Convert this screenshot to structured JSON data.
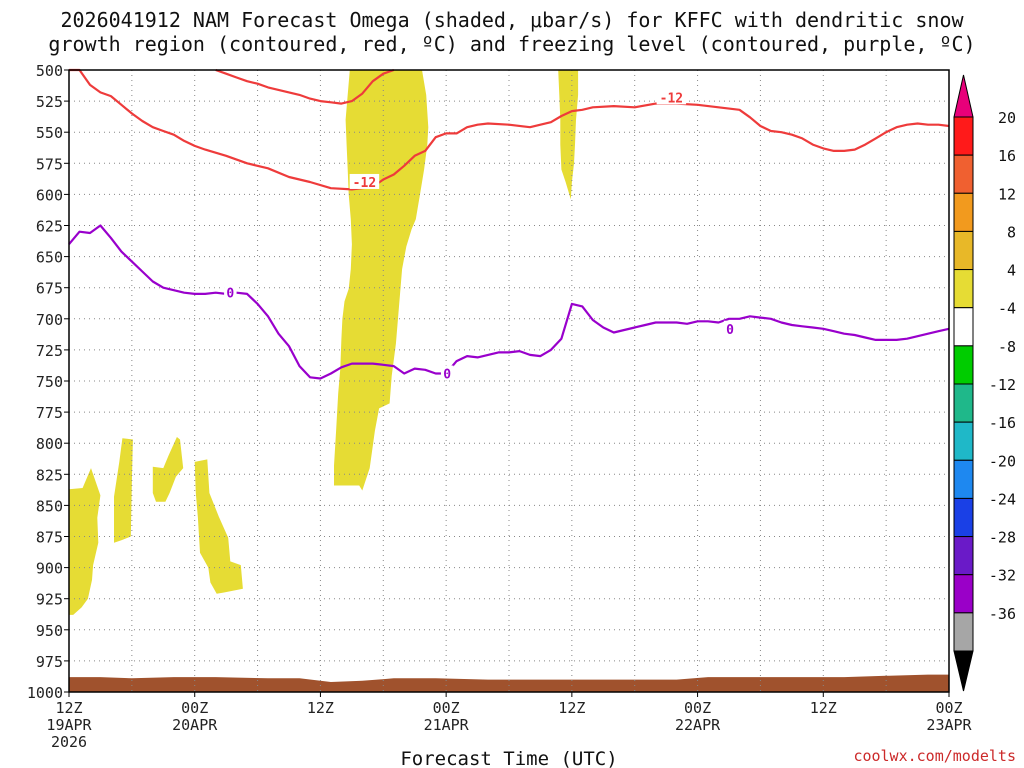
{
  "chart_data": {
    "type": "time-height",
    "title_line1": "2026041912 NAM Forecast Omega (shaded, μbar/s) for KFFC with dendritic snow",
    "title_line2": "growth region (contoured, red, ºC) and freezing level (contoured, purple, ºC)",
    "xlabel": "Forecast Time (UTC)",
    "credit": "coolwx.com/modelts",
    "x_range_hours": [
      0,
      84
    ],
    "y_range_hpa": [
      500,
      1000
    ],
    "y_ticks": [
      500,
      525,
      550,
      575,
      600,
      625,
      650,
      675,
      700,
      725,
      750,
      775,
      800,
      825,
      850,
      875,
      900,
      925,
      950,
      975,
      1000
    ],
    "x_ticks": [
      {
        "hour": 0,
        "line1": "12Z",
        "line2": "19APR",
        "line3": "2026"
      },
      {
        "hour": 12,
        "line1": "00Z",
        "line2": "20APR",
        "line3": ""
      },
      {
        "hour": 24,
        "line1": "12Z",
        "line2": "",
        "line3": ""
      },
      {
        "hour": 36,
        "line1": "00Z",
        "line2": "21APR",
        "line3": ""
      },
      {
        "hour": 48,
        "line1": "12Z",
        "line2": "",
        "line3": ""
      },
      {
        "hour": 60,
        "line1": "00Z",
        "line2": "22APR",
        "line3": ""
      },
      {
        "hour": 72,
        "line1": "12Z",
        "line2": "",
        "line3": ""
      },
      {
        "hour": 84,
        "line1": "00Z",
        "line2": "23APR",
        "line3": ""
      }
    ],
    "dgz_top_contour": {
      "name": "-12 upper",
      "points": [
        [
          0,
          500
        ],
        [
          1,
          500
        ],
        [
          2,
          512
        ],
        [
          3,
          518
        ],
        [
          4,
          521
        ],
        [
          5,
          528
        ],
        [
          6,
          535
        ],
        [
          7,
          541
        ],
        [
          8,
          546
        ],
        [
          9,
          549
        ],
        [
          10,
          552
        ],
        [
          11,
          557
        ],
        [
          12,
          561
        ],
        [
          13,
          564
        ],
        [
          15,
          569
        ],
        [
          17,
          575
        ],
        [
          19,
          579
        ],
        [
          21,
          586
        ],
        [
          23,
          590
        ],
        [
          25,
          595
        ],
        [
          27,
          596
        ],
        [
          28,
          595
        ],
        [
          29,
          594
        ],
        [
          30,
          588
        ],
        [
          31,
          584
        ],
        [
          32,
          577
        ],
        [
          33,
          569
        ],
        [
          34,
          565
        ],
        [
          35,
          554
        ],
        [
          36,
          551
        ],
        [
          37,
          551
        ],
        [
          38,
          546
        ],
        [
          39,
          544
        ],
        [
          40,
          543
        ],
        [
          42,
          544
        ],
        [
          44,
          546
        ],
        [
          45,
          544
        ],
        [
          46,
          542
        ],
        [
          47,
          537
        ],
        [
          48,
          533
        ],
        [
          49,
          532
        ],
        [
          50,
          530
        ],
        [
          52,
          529
        ],
        [
          54,
          530
        ],
        [
          56,
          527
        ],
        [
          58,
          527
        ],
        [
          60,
          528
        ],
        [
          62,
          530
        ],
        [
          64,
          532
        ],
        [
          65,
          538
        ],
        [
          66,
          545
        ],
        [
          67,
          549
        ],
        [
          68,
          550
        ],
        [
          69,
          552
        ],
        [
          70,
          555
        ],
        [
          71,
          560
        ],
        [
          72,
          563
        ],
        [
          73,
          565
        ],
        [
          74,
          565
        ],
        [
          75,
          564
        ],
        [
          76,
          560
        ],
        [
          77,
          555
        ],
        [
          78,
          550
        ],
        [
          79,
          546
        ],
        [
          80,
          544
        ],
        [
          81,
          543
        ],
        [
          82,
          544
        ],
        [
          83,
          544
        ],
        [
          84,
          545
        ]
      ]
    },
    "dgz_left_contour": {
      "name": "-12 left",
      "points": [
        [
          14,
          500
        ],
        [
          15,
          503
        ],
        [
          16,
          506
        ],
        [
          17,
          509
        ],
        [
          18,
          511
        ],
        [
          19,
          514
        ],
        [
          20,
          516
        ],
        [
          21,
          518
        ],
        [
          22,
          520
        ],
        [
          23,
          523
        ],
        [
          24,
          525
        ],
        [
          25,
          526
        ],
        [
          26,
          527
        ],
        [
          27,
          525
        ],
        [
          28,
          519
        ],
        [
          29,
          509
        ],
        [
          30,
          503
        ],
        [
          31,
          500
        ]
      ]
    },
    "freezing_level": {
      "name": "0 C",
      "points": [
        [
          0,
          640
        ],
        [
          1,
          630
        ],
        [
          2,
          631
        ],
        [
          3,
          625
        ],
        [
          4,
          635
        ],
        [
          5,
          646
        ],
        [
          6,
          654
        ],
        [
          7,
          662
        ],
        [
          8,
          670
        ],
        [
          9,
          675
        ],
        [
          10,
          677
        ],
        [
          11,
          679
        ],
        [
          12,
          680
        ],
        [
          13,
          680
        ],
        [
          14,
          679
        ],
        [
          15,
          680
        ],
        [
          16,
          679
        ],
        [
          17,
          680
        ],
        [
          18,
          688
        ],
        [
          19,
          698
        ],
        [
          20,
          712
        ],
        [
          21,
          722
        ],
        [
          22,
          738
        ],
        [
          23,
          747
        ],
        [
          24,
          748
        ],
        [
          25,
          744
        ],
        [
          26,
          739
        ],
        [
          27,
          736
        ],
        [
          28,
          736
        ],
        [
          29,
          736
        ],
        [
          30,
          737
        ],
        [
          31,
          738
        ],
        [
          32,
          744
        ],
        [
          33,
          740
        ],
        [
          34,
          741
        ],
        [
          35,
          744
        ],
        [
          36,
          744
        ],
        [
          37,
          734
        ],
        [
          38,
          730
        ],
        [
          39,
          731
        ],
        [
          40,
          729
        ],
        [
          41,
          727
        ],
        [
          42,
          727
        ],
        [
          43,
          726
        ],
        [
          44,
          729
        ],
        [
          45,
          730
        ],
        [
          46,
          725
        ],
        [
          47,
          716
        ],
        [
          48,
          688
        ],
        [
          49,
          690
        ],
        [
          50,
          701
        ],
        [
          51,
          707
        ],
        [
          52,
          711
        ],
        [
          53,
          709
        ],
        [
          54,
          707
        ],
        [
          55,
          705
        ],
        [
          56,
          703
        ],
        [
          57,
          703
        ],
        [
          58,
          703
        ],
        [
          59,
          704
        ],
        [
          60,
          702
        ],
        [
          61,
          702
        ],
        [
          62,
          703
        ],
        [
          63,
          700
        ],
        [
          64,
          700
        ],
        [
          65,
          698
        ],
        [
          66,
          699
        ],
        [
          67,
          700
        ],
        [
          68,
          703
        ],
        [
          69,
          705
        ],
        [
          70,
          706
        ],
        [
          71,
          707
        ],
        [
          72,
          708
        ],
        [
          73,
          710
        ],
        [
          74,
          712
        ],
        [
          75,
          713
        ],
        [
          76,
          715
        ],
        [
          77,
          717
        ],
        [
          78,
          717
        ],
        [
          79,
          717
        ],
        [
          80,
          716
        ],
        [
          81,
          714
        ],
        [
          82,
          712
        ],
        [
          83,
          710
        ],
        [
          84,
          708
        ]
      ]
    },
    "contour_labels": [
      {
        "text": "-12",
        "hour": 28.2,
        "p": 590,
        "color": "#ee3b3b"
      },
      {
        "text": "-12",
        "hour": 57.5,
        "p": 522,
        "color": "#ee3b3b"
      },
      {
        "text": "0",
        "hour": 15.4,
        "p": 679,
        "color": "#9900cc"
      },
      {
        "text": "0",
        "hour": 36.1,
        "p": 744,
        "color": "#9900cc"
      },
      {
        "text": "0",
        "hour": 63.1,
        "p": 708,
        "color": "#9900cc"
      }
    ],
    "omega_regions_4_8": [
      [
        [
          26.8,
          500
        ],
        [
          33.7,
          500
        ],
        [
          34.1,
          520
        ],
        [
          34.3,
          546
        ],
        [
          34.2,
          560
        ],
        [
          33.9,
          580
        ],
        [
          33.5,
          600
        ],
        [
          33.1,
          620
        ],
        [
          32.7,
          628
        ],
        [
          32.2,
          642
        ],
        [
          31.8,
          660
        ],
        [
          31.5,
          690
        ],
        [
          31.2,
          720
        ],
        [
          30.8,
          746
        ],
        [
          30.6,
          768
        ],
        [
          29.6,
          772
        ],
        [
          29.2,
          790
        ],
        [
          28.7,
          820
        ],
        [
          28.0,
          838
        ],
        [
          27.7,
          834
        ],
        [
          25.3,
          834
        ],
        [
          25.3,
          818
        ],
        [
          25.5,
          790
        ],
        [
          25.7,
          760
        ],
        [
          25.9,
          740
        ],
        [
          26.0,
          716
        ],
        [
          26.1,
          700
        ],
        [
          26.3,
          686
        ],
        [
          26.7,
          676
        ],
        [
          26.9,
          660
        ],
        [
          27.0,
          640
        ],
        [
          26.9,
          620
        ],
        [
          26.7,
          600
        ],
        [
          26.6,
          580
        ],
        [
          26.5,
          560
        ],
        [
          26.4,
          540
        ],
        [
          26.6,
          520
        ]
      ],
      [
        [
          46.7,
          500
        ],
        [
          48.6,
          500
        ],
        [
          48.6,
          520
        ],
        [
          48.4,
          540
        ],
        [
          48.3,
          560
        ],
        [
          48.2,
          575
        ],
        [
          48.0,
          590
        ],
        [
          47.9,
          604
        ],
        [
          47.4,
          590
        ],
        [
          47.0,
          580
        ],
        [
          46.9,
          560
        ],
        [
          46.9,
          540
        ],
        [
          46.8,
          520
        ]
      ],
      [
        [
          0,
          837
        ],
        [
          1.3,
          836
        ],
        [
          2.1,
          820
        ],
        [
          3.0,
          842
        ],
        [
          2.7,
          860
        ],
        [
          2.8,
          880
        ],
        [
          2.3,
          898
        ],
        [
          2.2,
          910
        ],
        [
          1.8,
          925
        ],
        [
          1.2,
          932
        ],
        [
          0.4,
          938
        ],
        [
          0,
          938
        ]
      ],
      [
        [
          4.3,
          843
        ],
        [
          4.8,
          815
        ],
        [
          5.1,
          796
        ],
        [
          6.1,
          797
        ],
        [
          6.0,
          830
        ],
        [
          5.9,
          875
        ],
        [
          5.0,
          878
        ],
        [
          4.3,
          880
        ]
      ],
      [
        [
          8.0,
          819
        ],
        [
          9.0,
          820
        ],
        [
          9.5,
          810
        ],
        [
          10.3,
          795
        ],
        [
          10.6,
          797
        ],
        [
          10.9,
          820
        ],
        [
          10.2,
          827
        ],
        [
          9.6,
          840
        ],
        [
          9.2,
          847
        ],
        [
          8.3,
          847
        ],
        [
          8.0,
          840
        ]
      ],
      [
        [
          12.0,
          815
        ],
        [
          13.2,
          813
        ],
        [
          13.4,
          840
        ],
        [
          14.3,
          859
        ],
        [
          15.2,
          876
        ],
        [
          15.4,
          895
        ],
        [
          16.4,
          898
        ],
        [
          16.6,
          917
        ],
        [
          14.8,
          920
        ],
        [
          14.1,
          921
        ],
        [
          13.5,
          912
        ],
        [
          13.3,
          900
        ],
        [
          12.5,
          888
        ],
        [
          12.3,
          860
        ],
        [
          12.1,
          840
        ]
      ]
    ],
    "surface_terrain": [
      [
        0,
        988
      ],
      [
        3,
        988
      ],
      [
        6,
        989
      ],
      [
        10,
        988
      ],
      [
        14,
        988
      ],
      [
        19,
        989
      ],
      [
        22,
        989
      ],
      [
        25,
        992
      ],
      [
        28,
        991
      ],
      [
        31,
        989
      ],
      [
        35,
        989
      ],
      [
        40,
        990
      ],
      [
        45,
        990
      ],
      [
        50,
        990
      ],
      [
        55,
        990
      ],
      [
        58,
        990
      ],
      [
        61,
        988
      ],
      [
        66,
        988
      ],
      [
        70,
        988
      ],
      [
        74,
        988
      ],
      [
        78,
        987
      ],
      [
        82,
        986
      ],
      [
        84,
        986
      ]
    ],
    "colorbar": {
      "labels": [
        "20",
        "16",
        "12",
        "8",
        "4",
        "-4",
        "-8",
        "-12",
        "-16",
        "-20",
        "-24",
        "-28",
        "-32",
        "-36"
      ],
      "colors": [
        "#ff1a1a",
        "#f06030",
        "#f29a1e",
        "#e8b828",
        "#e6dc34",
        "#ffffff",
        "#00cc00",
        "#1fb88a",
        "#1fb8c8",
        "#1e88f0",
        "#1a40e6",
        "#6a1ac8",
        "#9a00c8",
        "#a6a6a6"
      ],
      "top_arrow_color": "#e8007a",
      "bottom_arrow_color": "#000000"
    },
    "colors": {
      "dgz": "#ee3b3b",
      "freezing": "#9900cc",
      "omega_shade": "#e6dc34",
      "terrain": "#a0522d",
      "grid": "#888888"
    }
  }
}
